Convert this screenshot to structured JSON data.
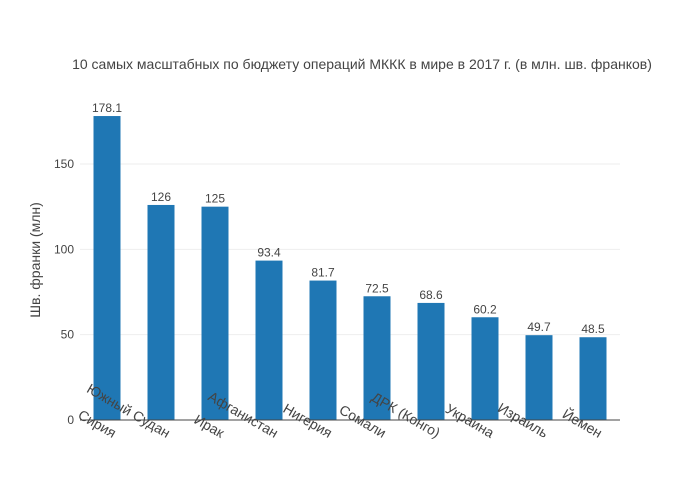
{
  "chart_data": {
    "type": "bar",
    "title": "10 самых масштабных по бюджету операций МККК в мире в 2017 г. (в млн. шв. франков)",
    "xlabel": "",
    "ylabel": "Шв. франки (млн)",
    "categories": [
      "Сирия",
      "Южный Судан",
      "Ирак",
      "Афганистан",
      "Нигерия",
      "Сомали",
      "ДРК (Конго)",
      "Украина",
      "Израиль",
      "Йемен"
    ],
    "values": [
      178.1,
      126,
      125,
      93.4,
      81.7,
      72.5,
      68.6,
      60.2,
      49.7,
      48.5
    ],
    "value_labels": [
      "178.1",
      "126",
      "125",
      "93.4",
      "81.7",
      "72.5",
      "68.6",
      "60.2",
      "49.7",
      "48.5"
    ],
    "ylim": [
      0,
      187.5
    ],
    "yticks": [
      0,
      50,
      100,
      150
    ],
    "ytick_labels": [
      "0",
      "50",
      "100",
      "150"
    ],
    "bar_color": "#1f77b4",
    "grid": true,
    "legend": "none"
  }
}
